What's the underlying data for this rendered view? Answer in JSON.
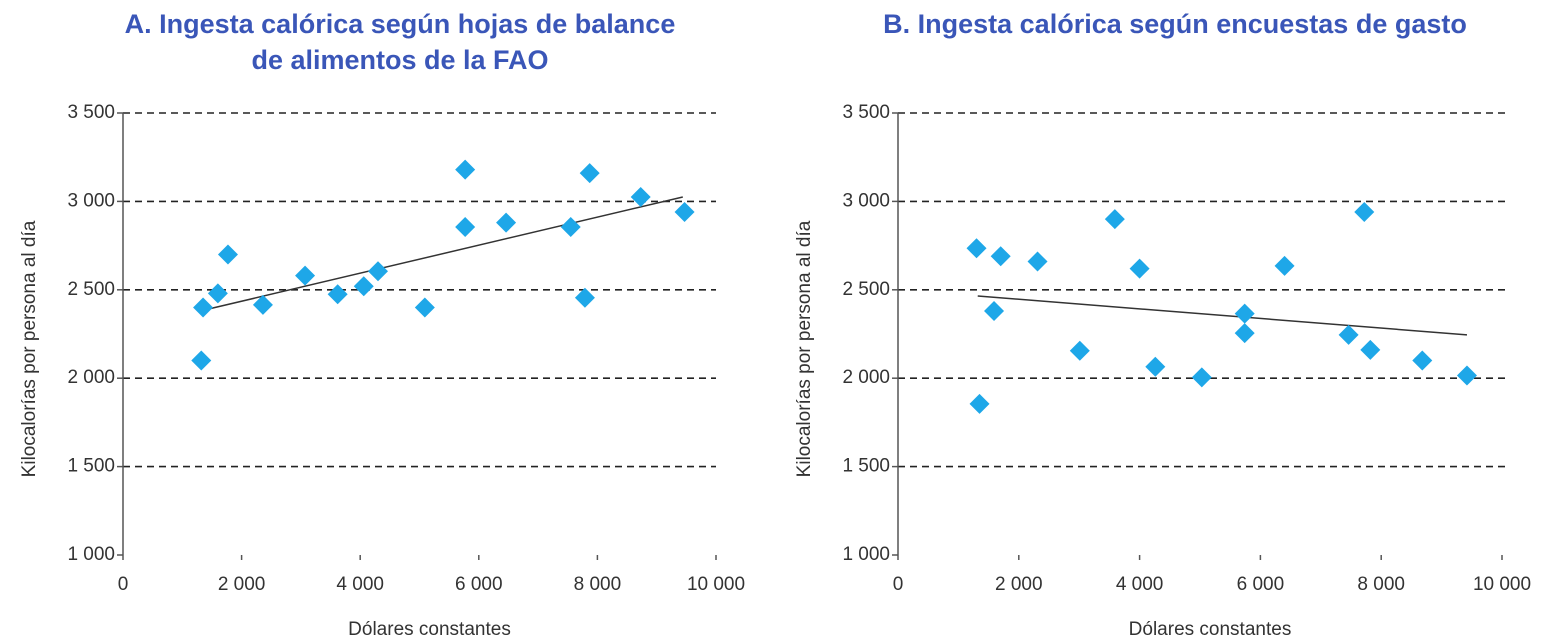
{
  "chart_data": [
    {
      "type": "scatter",
      "title": [
        "A. Ingesta calórica según hojas de balance",
        "de alimentos de la FAO"
      ],
      "x_label": "Dólares constantes",
      "y_label": "Kilocalorías por persona al día",
      "color": "#1ea7e8",
      "x": [
        1350,
        1320,
        1600,
        1770,
        2360,
        3070,
        3620,
        4060,
        4300,
        5090,
        5770,
        5770,
        6460,
        7550,
        7790,
        7870,
        8730,
        9470
      ],
      "y": [
        2400,
        2100,
        2480,
        2700,
        2415,
        2580,
        2475,
        2520,
        2605,
        2400,
        3180,
        2855,
        2880,
        2855,
        2455,
        3160,
        3025,
        2940
      ],
      "trend_line": {
        "x": [
          1300,
          9440
        ],
        "y": [
          2380,
          3025
        ]
      },
      "xlim": [
        0,
        10000
      ],
      "ylim": [
        1000,
        3500
      ],
      "xticks": [
        0,
        {
          "value": 2000,
          "label": "2 000"
        },
        {
          "value": 4000,
          "label": "4 000"
        },
        {
          "value": 6000,
          "label": "6 000"
        },
        {
          "value": 8000,
          "label": "8 000"
        },
        {
          "value": 10000,
          "label": "10 000"
        }
      ],
      "yticks": [
        {
          "value": 1000,
          "label": "1 000"
        },
        {
          "value": 1500,
          "label": "1 500"
        },
        {
          "value": 2000,
          "label": "2 000"
        },
        {
          "value": 2500,
          "label": "2 500"
        },
        {
          "value": 3000,
          "label": "3 000"
        },
        {
          "value": 3500,
          "label": "3 500"
        }
      ],
      "grid": true
    },
    {
      "type": "scatter",
      "title": [
        "B. Ingesta calórica según encuestas de gasto"
      ],
      "x_label": "Dólares constantes",
      "y_label": "Kilocalorías por persona al día",
      "color": "#1ea7e8",
      "x": [
        1300,
        1700,
        2310,
        1350,
        1590,
        3010,
        3590,
        4000,
        4260,
        5030,
        5740,
        5740,
        6400,
        7460,
        7720,
        7820,
        8680,
        9420
      ],
      "y": [
        2735,
        2690,
        2660,
        1855,
        2380,
        2155,
        2900,
        2620,
        2065,
        2005,
        2365,
        2255,
        2635,
        2245,
        2940,
        2160,
        2100,
        2015
      ],
      "trend_line": {
        "x": [
          1320,
          9420
        ],
        "y": [
          2465,
          2245
        ]
      },
      "xlim": [
        0,
        10000
      ],
      "ylim": [
        1000,
        3500
      ],
      "xticks": [
        0,
        {
          "value": 2000,
          "label": "2 000"
        },
        {
          "value": 4000,
          "label": "4 000"
        },
        {
          "value": 6000,
          "label": "6 000"
        },
        {
          "value": 8000,
          "label": "8 000"
        },
        {
          "value": 10000,
          "label": "10 000"
        }
      ],
      "yticks": [
        {
          "value": 1000,
          "label": "1 000"
        },
        {
          "value": 1500,
          "label": "1 500"
        },
        {
          "value": 2000,
          "label": "2 000"
        },
        {
          "value": 2500,
          "label": "2 500"
        },
        {
          "value": 3000,
          "label": "3 000"
        },
        {
          "value": 3500,
          "label": "3 500"
        }
      ],
      "grid": true
    }
  ]
}
